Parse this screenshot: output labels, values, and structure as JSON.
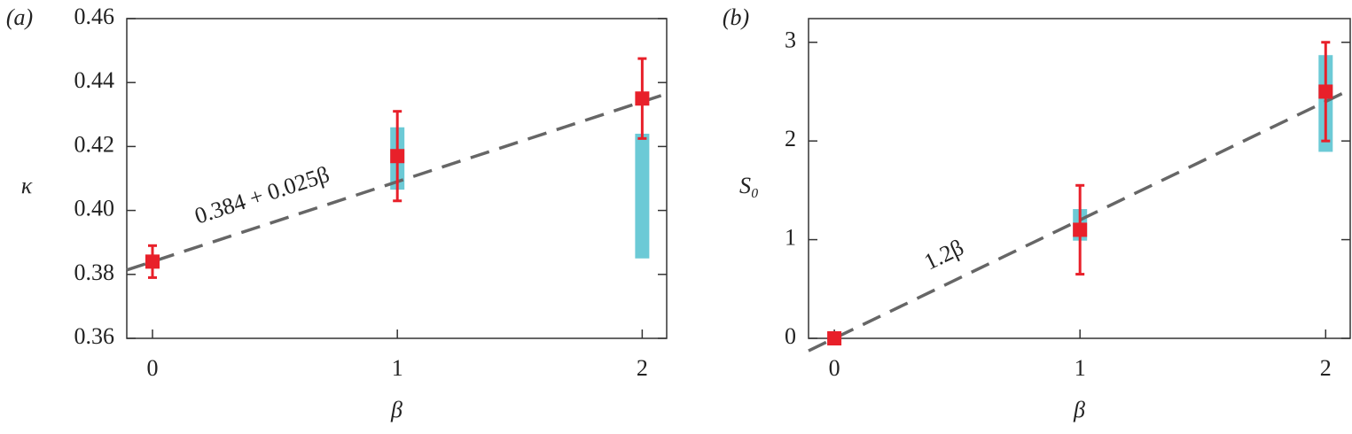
{
  "chart_data": [
    {
      "type": "scatter",
      "panel_label": "(a)",
      "xlabel": "β",
      "ylabel": "κ",
      "x": [
        0,
        1,
        2
      ],
      "xlim": [
        -0.105,
        2.1
      ],
      "xticks": [
        0,
        1,
        2
      ],
      "ylim": [
        0.36,
        0.46
      ],
      "yticks": [
        0.36,
        0.38,
        {
          "value": 0.4,
          "label": "0.40"
        },
        0.42,
        0.44,
        0.46
      ],
      "points": {
        "color": "#e8202a",
        "values": [
          0.384,
          0.417,
          0.435
        ],
        "errors": [
          0.005,
          0.014,
          0.0125
        ]
      },
      "ranges": {
        "color": "#6ccad6",
        "low": [
          0.382,
          0.4065,
          0.385
        ],
        "high": [
          0.386,
          0.426,
          0.424
        ]
      },
      "fit": {
        "intercept": 0.384,
        "slope": 0.025,
        "color": "#666666",
        "label": "0.384 + 0.025β"
      }
    },
    {
      "type": "scatter",
      "panel_label": "(b)",
      "xlabel": "β",
      "ylabel": "S₀",
      "x": [
        0,
        1,
        2
      ],
      "xlim": [
        -0.105,
        2.1
      ],
      "xticks": [
        0,
        1,
        2
      ],
      "ylim": [
        0,
        3.24
      ],
      "yticks": [
        0,
        1,
        2,
        3
      ],
      "points": {
        "color": "#e8202a",
        "values": [
          0,
          1.1,
          2.5
        ],
        "errors": [
          0,
          0.45,
          0.5
        ]
      },
      "ranges": {
        "color": "#6ccad6",
        "low": [
          null,
          0.99,
          1.89
        ],
        "high": [
          null,
          1.31,
          2.87
        ]
      },
      "fit": {
        "intercept": 0,
        "slope": 1.2,
        "color": "#666666",
        "label": "1.2β"
      }
    }
  ]
}
